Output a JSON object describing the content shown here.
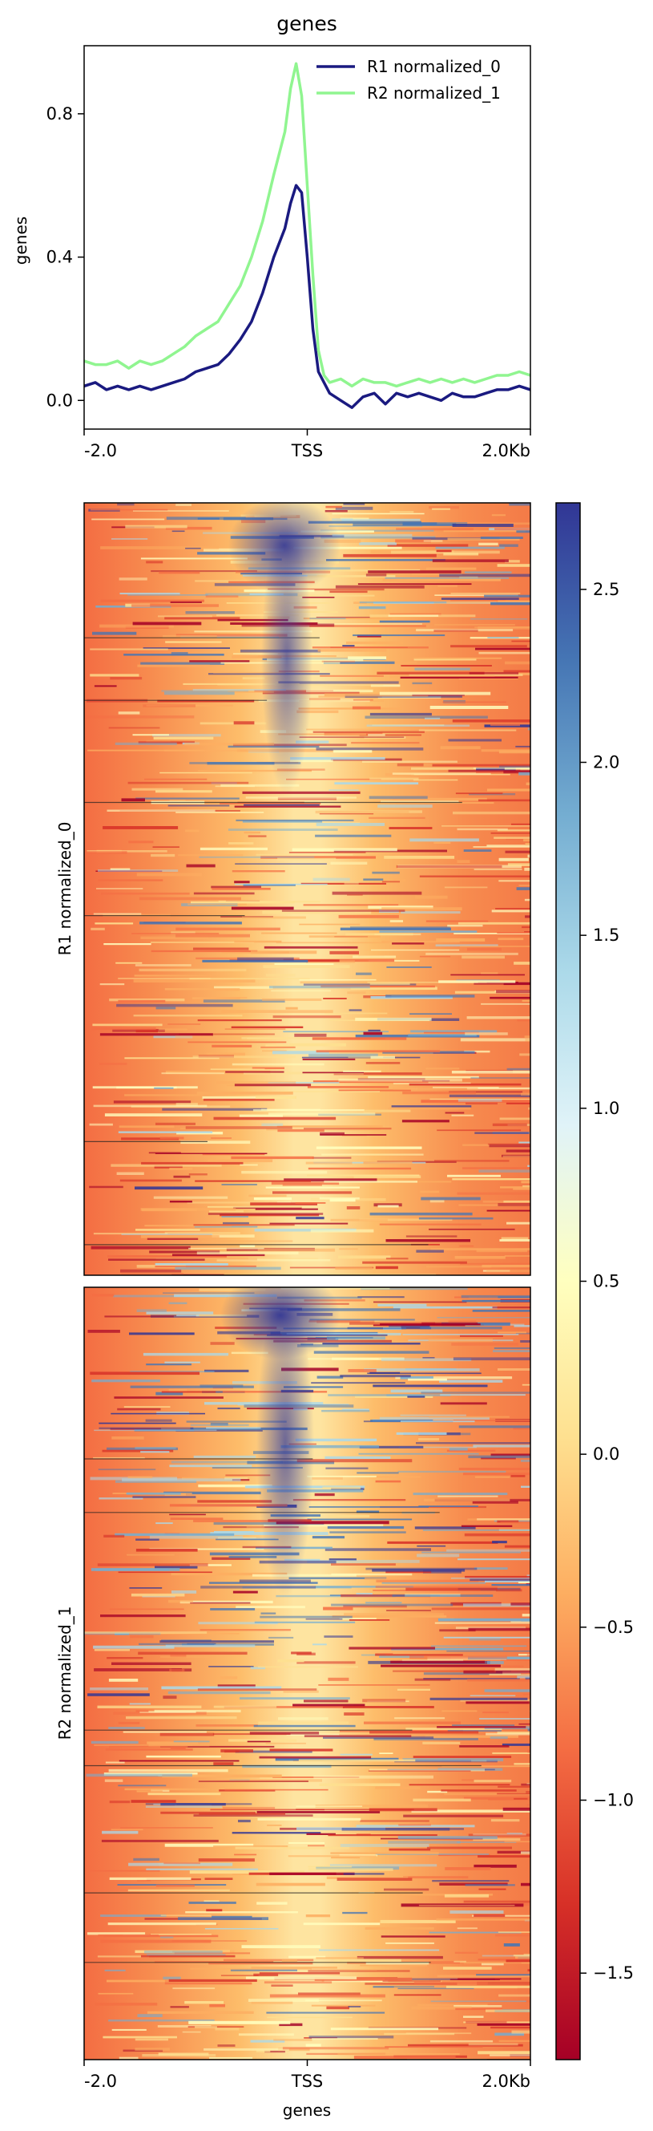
{
  "figure_title": "genes",
  "colors": {
    "r1_line": "#1a1a80",
    "r2_line": "#90f590",
    "frame": "#000000"
  },
  "chart_data": [
    {
      "type": "line",
      "title": "genes",
      "ylabel": "genes",
      "xlabel": "",
      "x_tick_labels": [
        "-2.0",
        "TSS",
        "2.0Kb"
      ],
      "x": [
        -2000,
        -1900,
        -1800,
        -1700,
        -1600,
        -1500,
        -1400,
        -1300,
        -1200,
        -1100,
        -1000,
        -900,
        -800,
        -700,
        -600,
        -500,
        -400,
        -300,
        -200,
        -150,
        -100,
        -50,
        0,
        50,
        100,
        150,
        200,
        300,
        400,
        500,
        600,
        700,
        800,
        900,
        1000,
        1100,
        1200,
        1300,
        1400,
        1500,
        1600,
        1700,
        1800,
        1900,
        2000
      ],
      "xlim": [
        -2000,
        2000
      ],
      "ylim": [
        -0.08,
        0.99
      ],
      "y_ticks": [
        0.0,
        0.4,
        0.8
      ],
      "y_tick_labels": [
        "0.0",
        "0.4",
        "0.8"
      ],
      "legend_position": "top-right",
      "grid": false,
      "series": [
        {
          "name": "R1 normalized_0",
          "color": "#1a1a80",
          "values": [
            0.04,
            0.05,
            0.03,
            0.04,
            0.03,
            0.04,
            0.03,
            0.04,
            0.05,
            0.06,
            0.08,
            0.09,
            0.1,
            0.13,
            0.17,
            0.22,
            0.3,
            0.4,
            0.48,
            0.55,
            0.6,
            0.58,
            0.4,
            0.2,
            0.08,
            0.05,
            0.02,
            0.0,
            -0.02,
            0.01,
            0.02,
            -0.01,
            0.02,
            0.01,
            0.02,
            0.01,
            0.0,
            0.02,
            0.01,
            0.01,
            0.02,
            0.03,
            0.03,
            0.04,
            0.03
          ]
        },
        {
          "name": "R2 normalized_1",
          "color": "#90f590",
          "values": [
            0.11,
            0.1,
            0.1,
            0.11,
            0.09,
            0.11,
            0.1,
            0.11,
            0.13,
            0.15,
            0.18,
            0.2,
            0.22,
            0.27,
            0.32,
            0.4,
            0.5,
            0.63,
            0.75,
            0.87,
            0.94,
            0.85,
            0.6,
            0.35,
            0.14,
            0.07,
            0.05,
            0.06,
            0.04,
            0.06,
            0.05,
            0.05,
            0.04,
            0.05,
            0.06,
            0.05,
            0.06,
            0.05,
            0.06,
            0.05,
            0.06,
            0.07,
            0.07,
            0.08,
            0.07
          ]
        }
      ]
    },
    {
      "type": "heatmap",
      "name": "R1 normalized_0",
      "ylabel": "R1 normalized_0"
    },
    {
      "type": "heatmap",
      "name": "R2 normalized_1",
      "ylabel": "R2 normalized_1",
      "xlabel": "genes",
      "x_tick_labels": [
        "-2.0",
        "TSS",
        "2.0Kb"
      ]
    },
    {
      "type": "colorbar",
      "vmin": -1.75,
      "vmax": 2.75,
      "ticks": [
        -1.5,
        -1.0,
        -0.5,
        0.0,
        0.5,
        1.0,
        1.5,
        2.0,
        2.5
      ],
      "tick_labels": [
        "−1.5",
        "−1.0",
        "−0.5",
        "0.0",
        "0.5",
        "1.0",
        "1.5",
        "2.0",
        "2.5"
      ],
      "colormap": "RdYlBu",
      "colormap_stops": [
        "#a50026",
        "#d73027",
        "#f46d43",
        "#fdae61",
        "#fee090",
        "#ffffbf",
        "#e0f3f8",
        "#abd9e9",
        "#74add1",
        "#4575b4",
        "#313695"
      ]
    }
  ]
}
